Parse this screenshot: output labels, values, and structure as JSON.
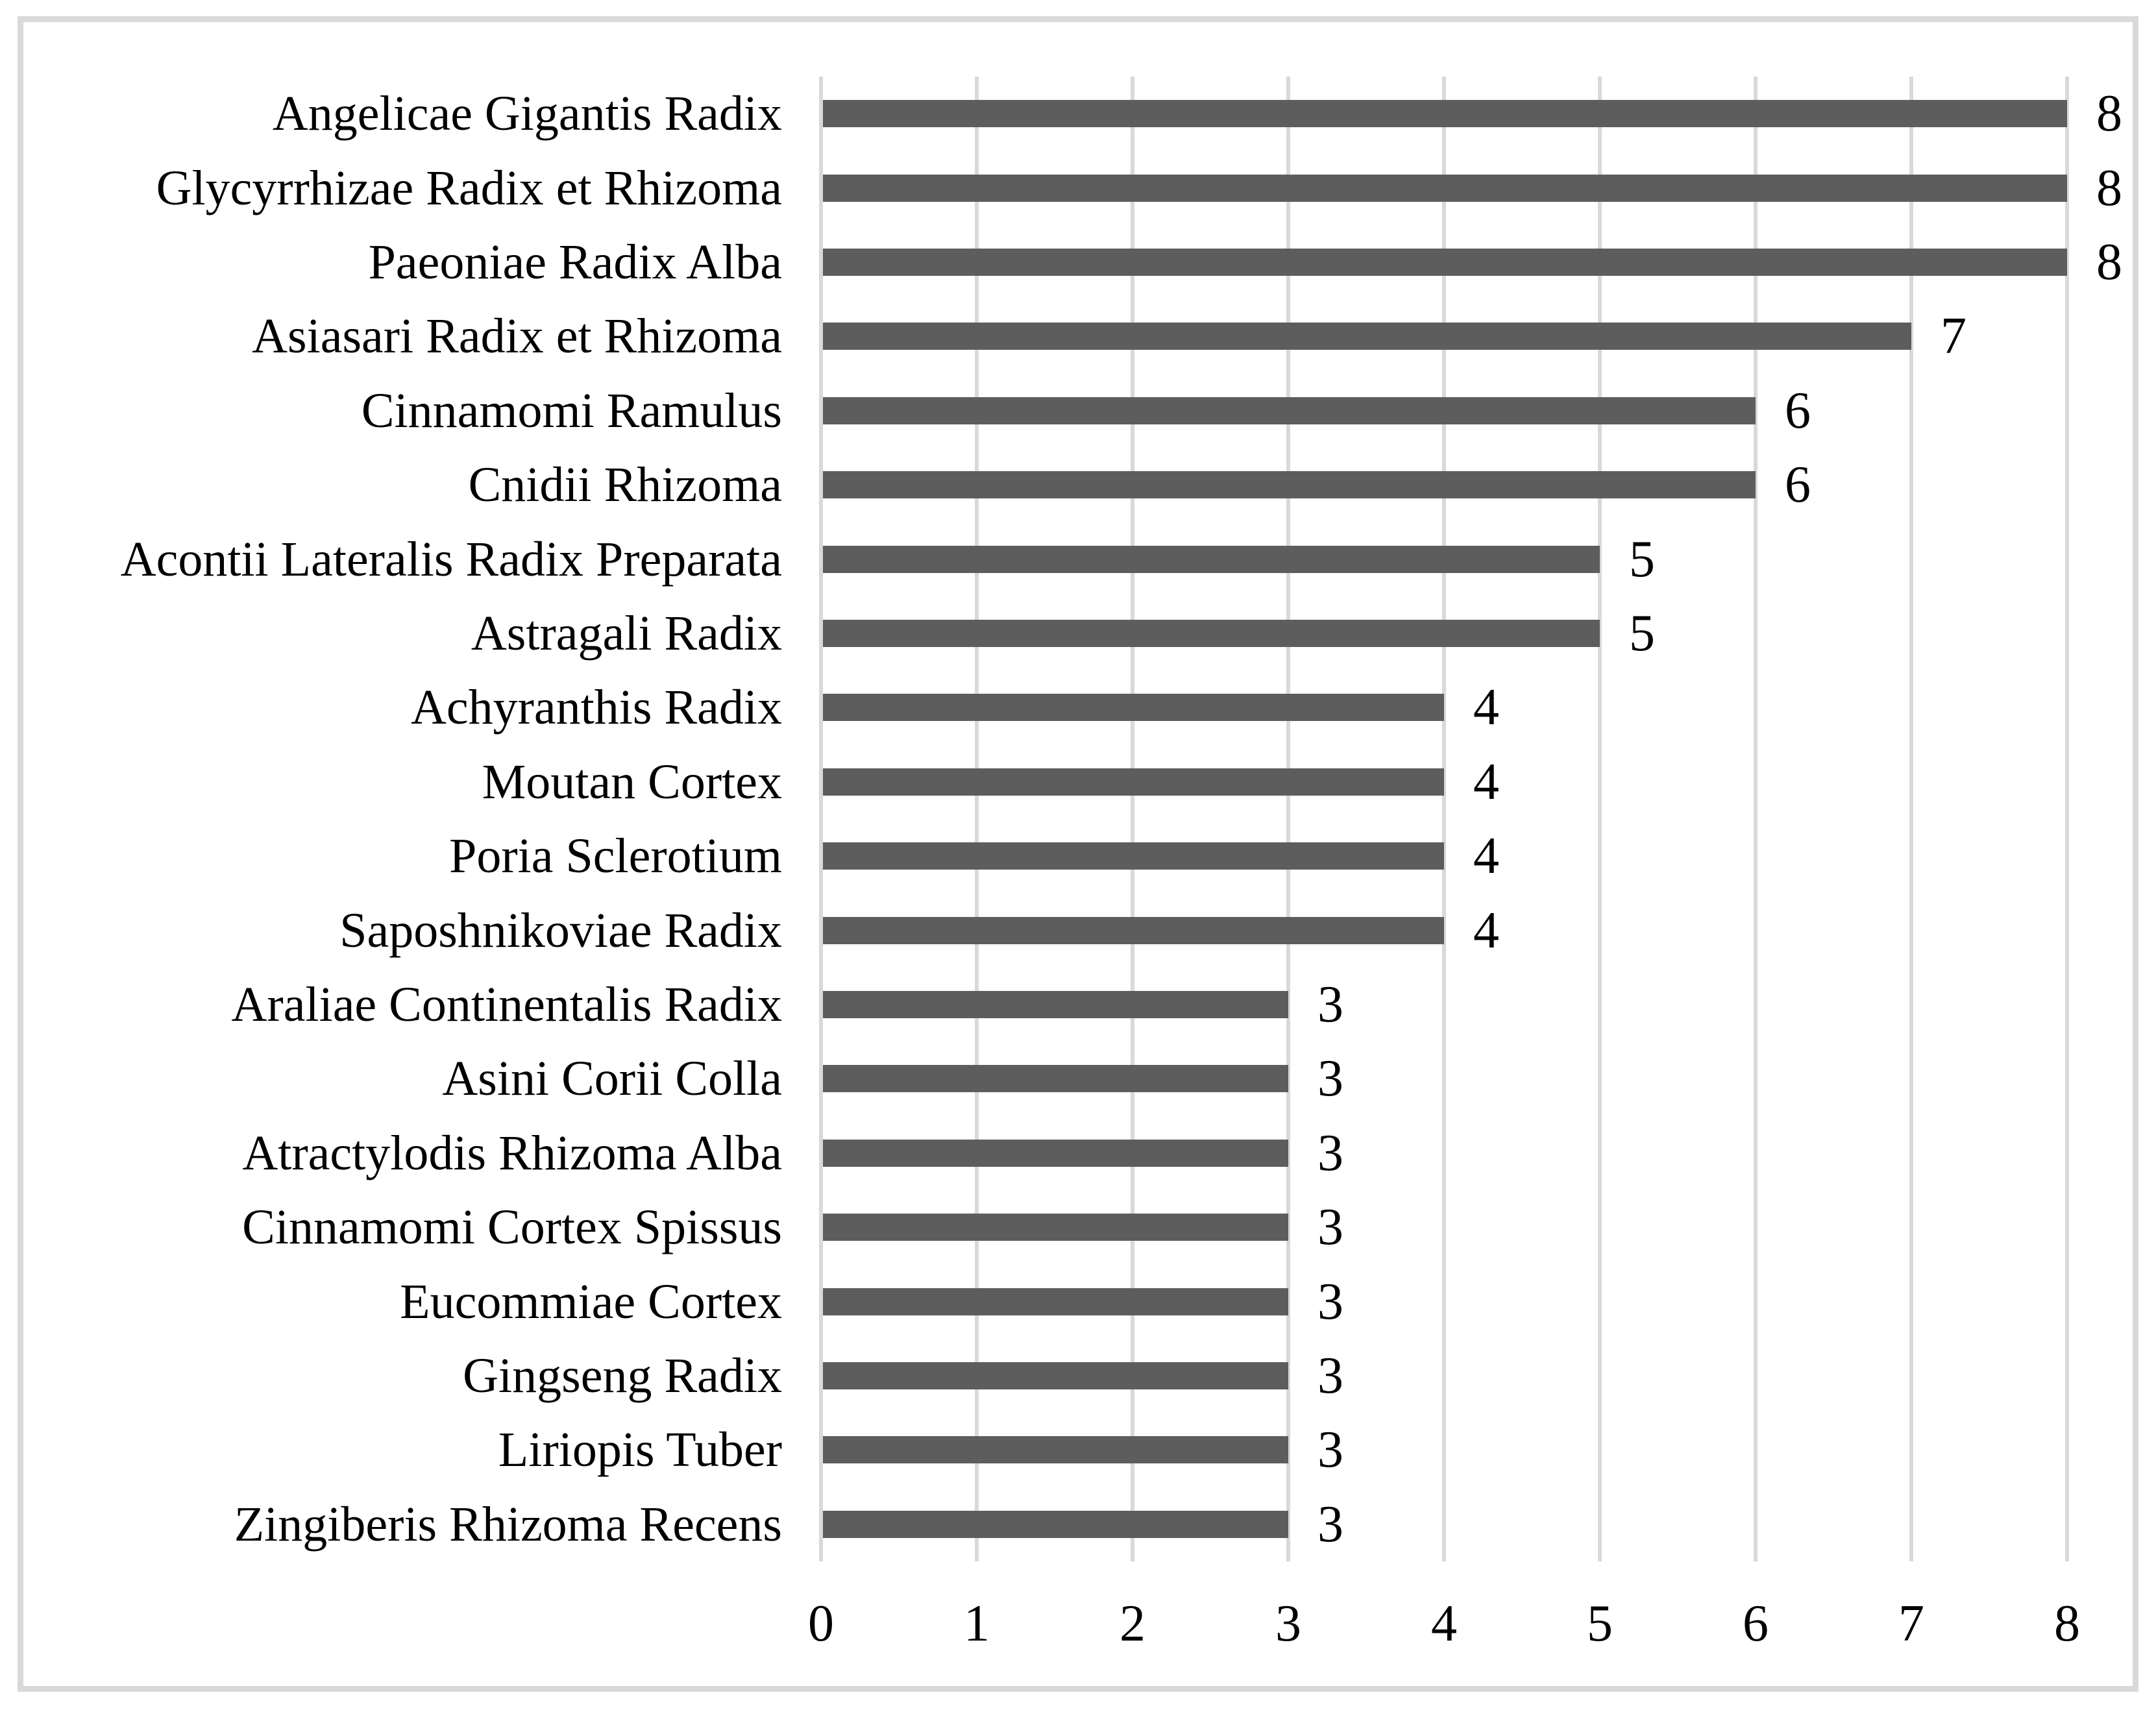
{
  "chart_data": {
    "type": "bar",
    "orientation": "horizontal",
    "title": "",
    "xlabel": "",
    "ylabel": "",
    "categories": [
      "Angelicae Gigantis Radix",
      "Glycyrrhizae Radix et Rhizoma",
      "Paeoniae Radix Alba",
      "Asiasari Radix et Rhizoma",
      "Cinnamomi Ramulus",
      "Cnidii Rhizoma",
      "Acontii Lateralis Radix Preparata",
      "Astragali Radix",
      "Achyranthis Radix",
      "Moutan Cortex",
      "Poria Sclerotium",
      "Saposhnikoviae Radix",
      "Araliae Continentalis Radix",
      "Asini Corii Colla",
      "Atractylodis Rhizoma Alba",
      "Cinnamomi Cortex Spissus",
      "Eucommiae Cortex",
      "Gingseng Radix",
      "Liriopis Tuber",
      "Zingiberis Rhizoma Recens"
    ],
    "values": [
      8,
      8,
      8,
      7,
      6,
      6,
      5,
      5,
      4,
      4,
      4,
      4,
      3,
      3,
      3,
      3,
      3,
      3,
      3,
      3
    ],
    "data_labels": [
      8,
      8,
      8,
      7,
      6,
      6,
      5,
      5,
      4,
      4,
      4,
      4,
      3,
      3,
      3,
      3,
      3,
      3,
      3,
      3
    ],
    "data_label_position": "outside-end",
    "xlim": [
      0,
      8
    ],
    "x_ticks": [
      0,
      1,
      2,
      3,
      4,
      5,
      6,
      7,
      8
    ],
    "grid": "vertical-major",
    "legend": "none",
    "colors": {
      "bar": "#5d5d5d",
      "gridline": "#d9d9d9",
      "frame_border": "#d9d9d9",
      "text": "#000000",
      "background": "#ffffff"
    }
  }
}
